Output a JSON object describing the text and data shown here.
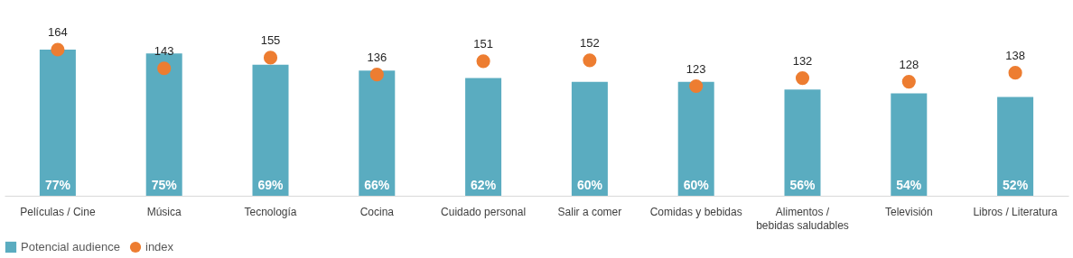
{
  "chart_data": {
    "type": "bar",
    "categories": [
      "Películas / Cine",
      "Música",
      "Tecnología",
      "Cocina",
      "Cuidado personal",
      "Salir a comer",
      "Comidas y bebidas",
      "Alimentos / bebidas saludables",
      "Televisión",
      "Libros / Literatura"
    ],
    "series": [
      {
        "name": "Potencial audience",
        "color": "#5aacc0",
        "values": [
          77,
          75,
          69,
          66,
          62,
          60,
          60,
          56,
          54,
          52
        ],
        "value_labels": [
          "77%",
          "75%",
          "69%",
          "66%",
          "62%",
          "60%",
          "60%",
          "56%",
          "54%",
          "52%"
        ]
      },
      {
        "name": "index",
        "type": "scatter",
        "axis": "y2",
        "color": "#ed7d31",
        "marker": "circle",
        "values": [
          164,
          143,
          155,
          136,
          151,
          152,
          123,
          132,
          128,
          138
        ],
        "value_labels": [
          "164",
          "143",
          "155",
          "136",
          "151",
          "152",
          "123",
          "132",
          "128",
          "138"
        ]
      }
    ],
    "tick_labels": "x",
    "legend": "bottom",
    "grid": false
  }
}
